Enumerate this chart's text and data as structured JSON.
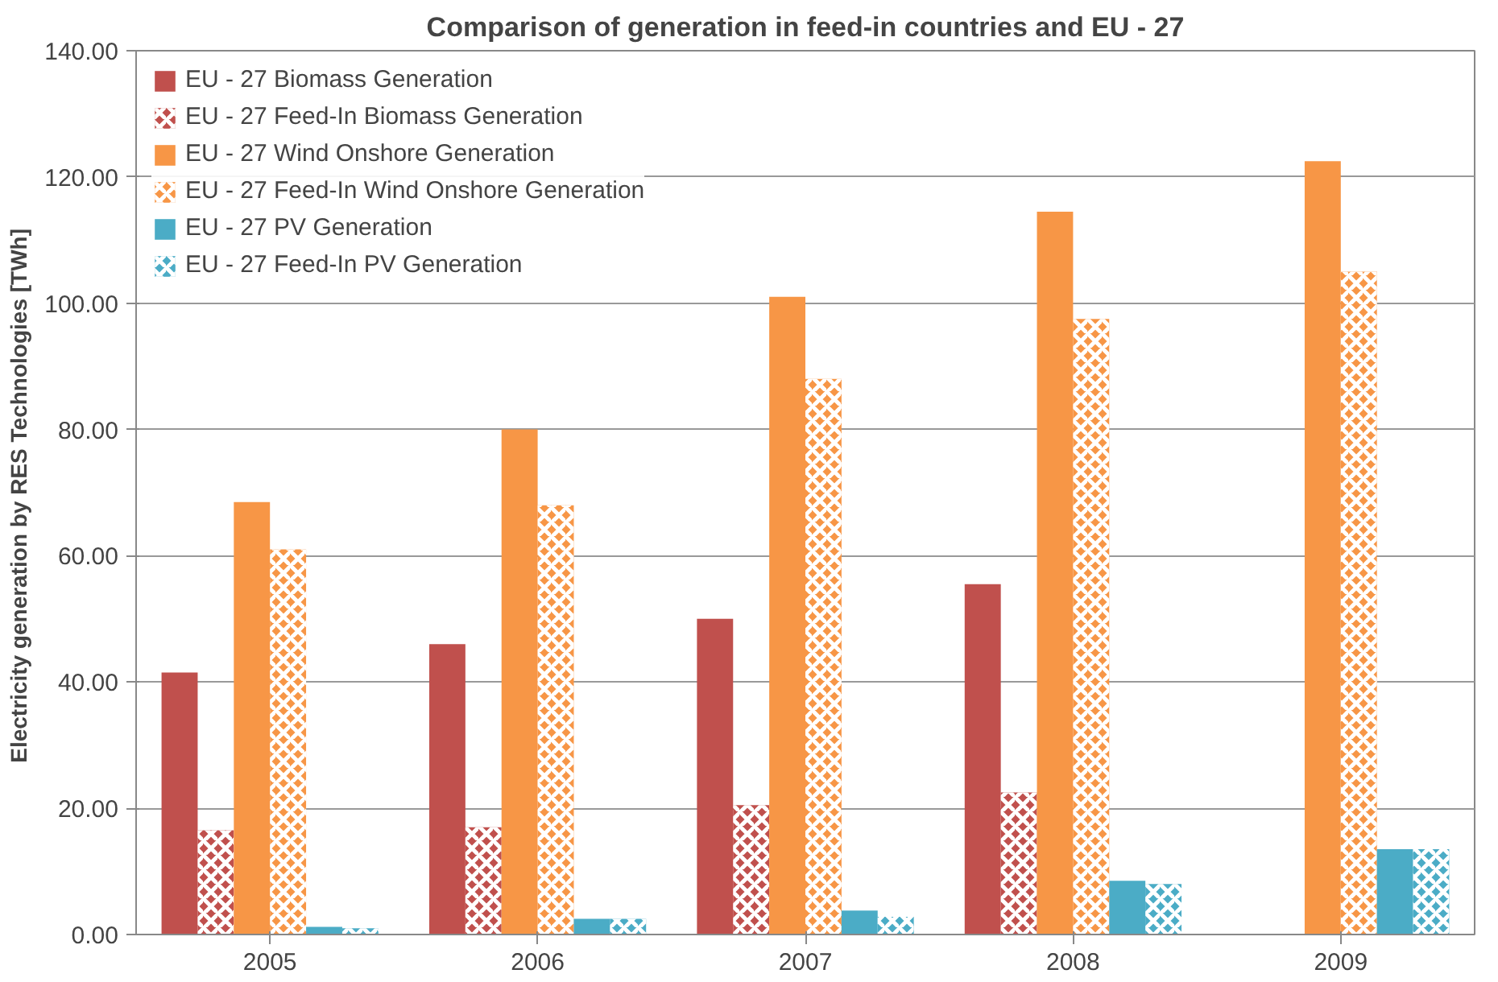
{
  "chart_data": {
    "type": "bar",
    "title": "Comparison of generation in feed-in countries and EU - 27",
    "ylabel": "Electricity generation by RES Technologies  [TWh]",
    "categories": [
      "2005",
      "2006",
      "2007",
      "2008",
      "2009"
    ],
    "series": [
      {
        "name": "EU - 27 Biomass Generation",
        "color": "#c0504d",
        "values": [
          41.5,
          46,
          50,
          55.5,
          null
        ]
      },
      {
        "name": "EU - 27 Feed-In Biomass Generation",
        "color": "#c0504d",
        "values": [
          16.5,
          17,
          20.5,
          22.5,
          null
        ]
      },
      {
        "name": "EU - 27 Wind Onshore Generation",
        "color": "#f79646",
        "values": [
          68.5,
          80,
          101,
          114.5,
          122.5
        ]
      },
      {
        "name": "EU - 27 Feed-In Wind Onshore Generation",
        "color": "#f79646",
        "values": [
          61,
          68,
          88,
          97.5,
          105
        ]
      },
      {
        "name": "EU - 27 PV Generation",
        "color": "#4bacc6",
        "values": [
          1.2,
          2.5,
          3.8,
          8.5,
          13.5
        ]
      },
      {
        "name": "EU - 27 Feed-In PV Generation",
        "color": "#4bacc6",
        "values": [
          1.0,
          2.5,
          2.8,
          8,
          13.5
        ]
      }
    ],
    "ylim": [
      0,
      140
    ],
    "yticks": [
      {
        "value": 0,
        "label": "0.00"
      },
      {
        "value": 20,
        "label": "20.00"
      },
      {
        "value": 40,
        "label": "40.00"
      },
      {
        "value": 60,
        "label": "60.00"
      },
      {
        "value": 80,
        "label": "80.00"
      },
      {
        "value": 100,
        "label": "100.00"
      },
      {
        "value": 120,
        "label": "120.00"
      },
      {
        "value": 140,
        "label": "140.00"
      }
    ],
    "grid": "y",
    "legend": "top left"
  }
}
